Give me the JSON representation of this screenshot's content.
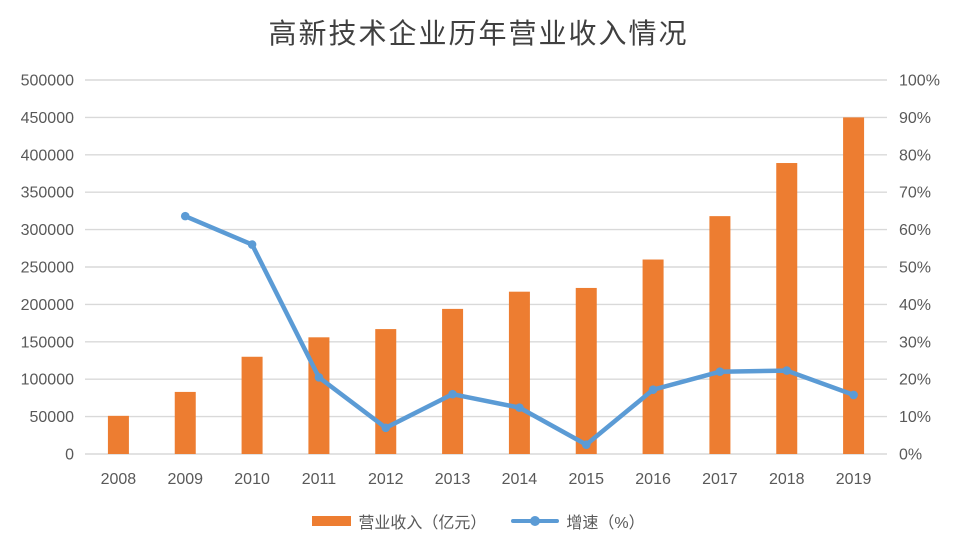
{
  "chart_data": {
    "type": "bar",
    "subtype": "combo-bar-line-dual-axis",
    "title": "高新技术企业历年营业收入情况",
    "categories": [
      "2008",
      "2009",
      "2010",
      "2011",
      "2012",
      "2013",
      "2014",
      "2015",
      "2016",
      "2017",
      "2018",
      "2019"
    ],
    "series": [
      {
        "name": "营业收入（亿元）",
        "type": "bar",
        "axis": "left",
        "values": [
          51000,
          83000,
          130000,
          156000,
          167000,
          194000,
          217000,
          222000,
          260000,
          318000,
          389000,
          450000
        ]
      },
      {
        "name": "增速（%）",
        "type": "line",
        "axis": "right",
        "values": [
          null,
          63.6,
          56.0,
          20.5,
          7.0,
          16.0,
          12.4,
          2.5,
          17.2,
          22.0,
          22.3,
          15.8
        ]
      }
    ],
    "legend": [
      "营业收入（亿元）",
      "增速（%）"
    ],
    "legend_position": "bottom",
    "grid": true,
    "left_axis": {
      "min": 0,
      "max": 500000,
      "step": 50000,
      "tick_labels": [
        "0",
        "50000",
        "100000",
        "150000",
        "200000",
        "250000",
        "300000",
        "350000",
        "400000",
        "450000",
        "500000"
      ]
    },
    "right_axis": {
      "min": 0,
      "max": 100,
      "step": 10,
      "tick_labels": [
        "0%",
        "10%",
        "20%",
        "30%",
        "40%",
        "50%",
        "60%",
        "70%",
        "80%",
        "90%",
        "100%"
      ]
    },
    "colors": {
      "bar": "#ED7D31",
      "line": "#5B9BD5",
      "grid": "#D9D9D9",
      "axis_label": "#595959",
      "title": "#404040"
    }
  }
}
